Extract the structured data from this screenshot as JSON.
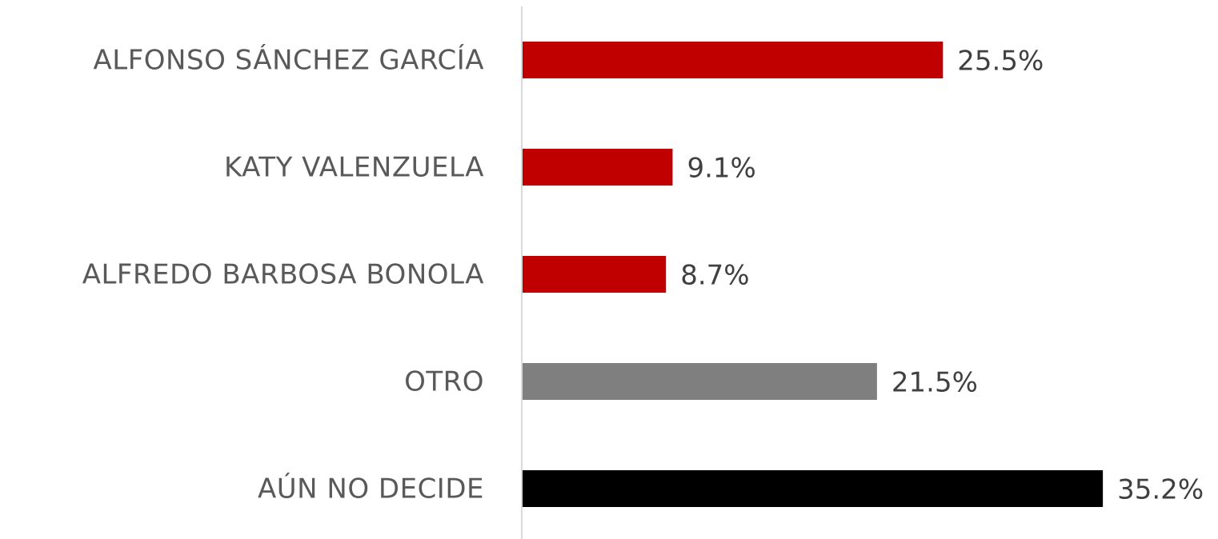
{
  "chart_data": {
    "type": "hbar",
    "categories": [
      "ALFONSO SÁNCHEZ GARCÍA",
      "KATY VALENZUELA",
      "ALFREDO BARBOSA BONOLA",
      "OTRO",
      "AÚN NO DECIDE"
    ],
    "values": [
      25.5,
      9.1,
      8.7,
      21.5,
      35.2
    ],
    "value_labels": [
      "25.5%",
      "9.1%",
      "8.7%",
      "21.5%",
      "35.2%"
    ],
    "colors": [
      "#c00000",
      "#c00000",
      "#c00000",
      "#7f7f7f",
      "#000000"
    ]
  }
}
